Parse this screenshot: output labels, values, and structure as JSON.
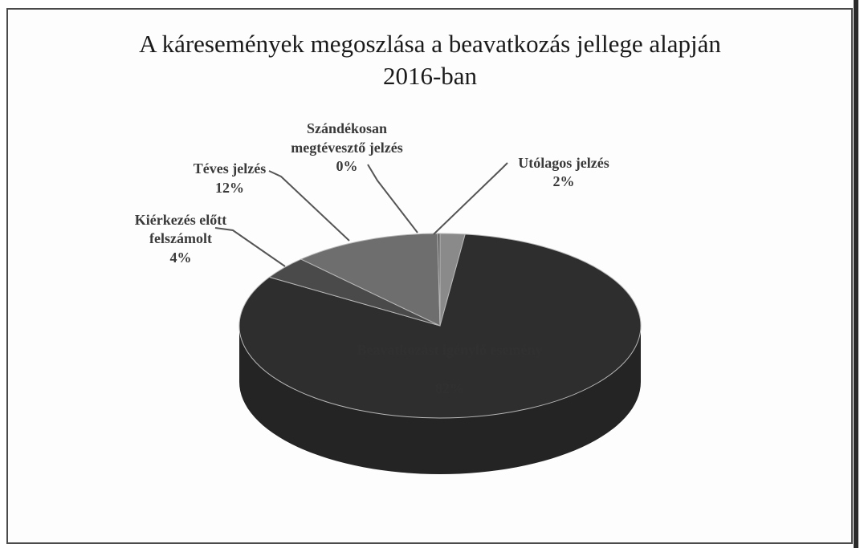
{
  "chart_data": {
    "type": "pie",
    "title": "A káresemények megoszlása a beavatkozás jellege alapján",
    "subtitle": "2016-ban",
    "slices": [
      {
        "label": "Utólagos jelzés",
        "pct_label": "2%",
        "value": 2,
        "color": "#8a8a8a"
      },
      {
        "label": "Beavatkozást igénylő esemény",
        "pct_label": "82%",
        "value": 82,
        "color": "#2e2e2e"
      },
      {
        "label": "Kiérkezés előtt felszámolt",
        "pct_label": "4%",
        "value": 4,
        "color": "#4a4a4a"
      },
      {
        "label": "Téves jelzés",
        "pct_label": "12%",
        "value": 12,
        "color": "#6e6e6e"
      },
      {
        "label": "Szándékosan megtévesztő jelzés",
        "pct_label": "0%",
        "value": 0.2,
        "color": "#5a5a5a"
      }
    ],
    "external_labels": {
      "utolagos": [
        "Utólagos jelzés",
        "2%"
      ],
      "szandekos": [
        "Szándékosan",
        "megtévesztő jelzés",
        "0%"
      ],
      "teves": [
        "Téves jelzés",
        "12%"
      ],
      "kierkezes": [
        "Kiérkezés előtt",
        "felszámolt",
        "4%"
      ]
    }
  }
}
